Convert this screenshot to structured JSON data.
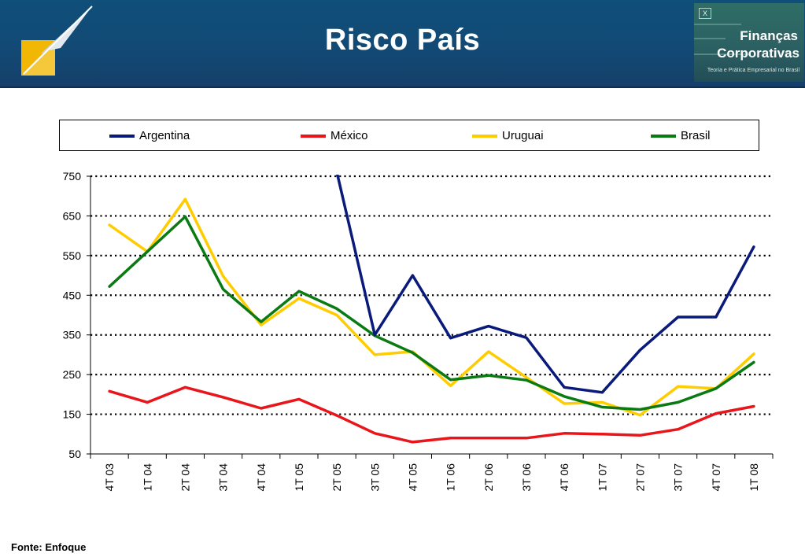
{
  "header": {
    "title": "Risco País",
    "brand_line1": "Finanças",
    "brand_line2": "Corporativas",
    "brand_tagline": "Teoria e Prática Empresarial no Brasil",
    "colors": {
      "background": "#124a75",
      "title_text": "#ffffff"
    }
  },
  "chart_data": {
    "type": "line",
    "title": "",
    "xlabel": "",
    "ylabel": "",
    "categories": [
      "4T 03",
      "1T 04",
      "2T 04",
      "3T 04",
      "4T 04",
      "1T 05",
      "2T 05",
      "3T 05",
      "4T 05",
      "1T 06",
      "2T 06",
      "3T 06",
      "4T 06",
      "1T 07",
      "2T 07",
      "3T 07",
      "4T 07",
      "1T 08"
    ],
    "yticks": [
      "50",
      "150",
      "250",
      "350",
      "450",
      "550",
      "650",
      "750"
    ],
    "ylim": [
      50,
      750
    ],
    "grid": "dotted horizontal",
    "legend_position": "top",
    "series": [
      {
        "name": "Argentina",
        "color": "#0a1a7a",
        "values": [
          null,
          null,
          null,
          null,
          null,
          null,
          760,
          350,
          500,
          342,
          372,
          343,
          218,
          205,
          312,
          395,
          395,
          572
        ]
      },
      {
        "name": "México",
        "color": "#e8161b",
        "values": [
          208,
          180,
          218,
          193,
          165,
          188,
          147,
          102,
          80,
          90,
          90,
          90,
          102,
          100,
          97,
          112,
          152,
          170
        ]
      },
      {
        "name": "Uruguai",
        "color": "#ffcc00",
        "values": [
          627,
          560,
          692,
          498,
          375,
          442,
          400,
          300,
          308,
          222,
          308,
          243,
          177,
          180,
          148,
          220,
          215,
          302
        ]
      },
      {
        "name": "Brasil",
        "color": "#0a7a12",
        "values": [
          472,
          560,
          648,
          465,
          383,
          460,
          416,
          348,
          305,
          237,
          248,
          236,
          195,
          168,
          162,
          180,
          215,
          281
        ]
      }
    ]
  },
  "footer": {
    "source": "Fonte: Enfoque"
  }
}
